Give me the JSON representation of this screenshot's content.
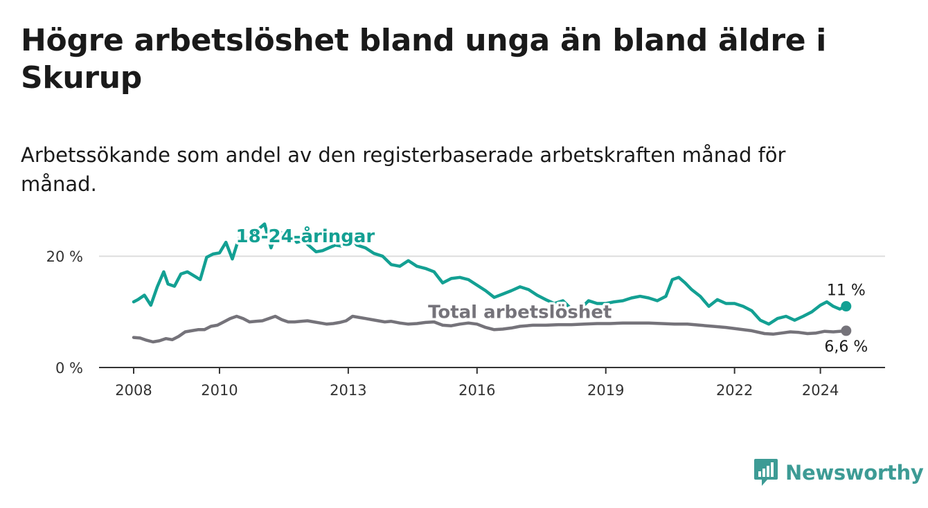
{
  "title": "Högre arbetslöshet bland unga än bland äldre i Skurup",
  "subtitle": "Arbetssökande som andel av den registerbaserade arbetskraften månad för månad.",
  "brand": {
    "name": "Newsworthy"
  },
  "colors": {
    "youth": "#13a093",
    "total": "#75737a",
    "grid": "#dddddd",
    "axis": "#333333"
  },
  "chart_data": {
    "type": "line",
    "x_unit": "year",
    "xlim": [
      2008,
      2024.7
    ],
    "ylim": [
      0,
      25
    ],
    "y_ticks": [
      {
        "value": 0,
        "label": "0 %"
      },
      {
        "value": 20,
        "label": "20 %"
      }
    ],
    "x_ticks": [
      {
        "value": 2008,
        "label": "2008"
      },
      {
        "value": 2010,
        "label": "2010"
      },
      {
        "value": 2013,
        "label": "2013"
      },
      {
        "value": 2016,
        "label": "2016"
      },
      {
        "value": 2019,
        "label": "2019"
      },
      {
        "value": 2022,
        "label": "2022"
      },
      {
        "value": 2024,
        "label": "2024"
      }
    ],
    "series": [
      {
        "name": "18-24-åringar",
        "key": "youth",
        "label_position": {
          "x": 2012.0,
          "y": 22.5
        },
        "end_label": "11 %",
        "x": [
          2008.0,
          2008.1,
          2008.25,
          2008.4,
          2008.55,
          2008.7,
          2008.8,
          2008.95,
          2009.1,
          2009.25,
          2009.4,
          2009.55,
          2009.7,
          2009.85,
          2010.0,
          2010.15,
          2010.3,
          2010.45,
          2010.6,
          2010.75,
          2010.9,
          2011.05,
          2011.2,
          2011.35,
          2011.5,
          2011.65,
          2011.8,
          2011.95,
          2012.1,
          2012.25,
          2012.4,
          2012.55,
          2012.7,
          2012.85,
          2013.0,
          2013.2,
          2013.4,
          2013.6,
          2013.8,
          2014.0,
          2014.2,
          2014.4,
          2014.6,
          2014.8,
          2015.0,
          2015.2,
          2015.4,
          2015.6,
          2015.8,
          2016.0,
          2016.2,
          2016.4,
          2016.6,
          2016.8,
          2017.0,
          2017.2,
          2017.4,
          2017.6,
          2017.8,
          2018.0,
          2018.2,
          2018.4,
          2018.6,
          2018.8,
          2019.0,
          2019.2,
          2019.4,
          2019.6,
          2019.8,
          2020.0,
          2020.2,
          2020.4,
          2020.55,
          2020.7,
          2020.85,
          2021.0,
          2021.2,
          2021.4,
          2021.6,
          2021.8,
          2022.0,
          2022.2,
          2022.4,
          2022.6,
          2022.8,
          2023.0,
          2023.2,
          2023.4,
          2023.6,
          2023.8,
          2024.0,
          2024.15,
          2024.3,
          2024.45,
          2024.6
        ],
        "y": [
          11.8,
          12.2,
          13.0,
          11.2,
          14.5,
          17.2,
          15.0,
          14.6,
          16.8,
          17.2,
          16.5,
          15.8,
          19.8,
          20.4,
          20.6,
          22.5,
          19.5,
          23.2,
          22.5,
          24.2,
          24.8,
          25.8,
          21.5,
          24.8,
          23.8,
          24.2,
          22.5,
          22.8,
          21.8,
          20.8,
          21.0,
          21.5,
          22.0,
          21.8,
          24.0,
          22.0,
          21.5,
          20.5,
          20.0,
          18.5,
          18.2,
          19.2,
          18.2,
          17.8,
          17.2,
          15.2,
          16.0,
          16.2,
          15.8,
          14.8,
          13.8,
          12.6,
          13.2,
          13.8,
          14.5,
          14.0,
          13.0,
          12.2,
          11.5,
          12.0,
          10.5,
          10.5,
          12.0,
          11.5,
          11.5,
          11.8,
          12.0,
          12.5,
          12.8,
          12.5,
          12.0,
          12.8,
          15.8,
          16.2,
          15.2,
          14.0,
          12.8,
          11.0,
          12.2,
          11.5,
          11.5,
          11.0,
          10.2,
          8.5,
          7.8,
          8.8,
          9.2,
          8.5,
          9.2,
          10.0,
          11.2,
          11.8,
          11.0,
          10.5,
          11.0
        ]
      },
      {
        "name": "Total arbetslöshet",
        "key": "total",
        "label_position": {
          "x": 2017.0,
          "y": 8.9
        },
        "end_label": "6,6 %",
        "x": [
          2008.0,
          2008.15,
          2008.3,
          2008.45,
          2008.6,
          2008.75,
          2008.9,
          2009.05,
          2009.2,
          2009.35,
          2009.5,
          2009.65,
          2009.8,
          2009.95,
          2010.1,
          2010.25,
          2010.4,
          2010.55,
          2010.7,
          2010.85,
          2011.0,
          2011.15,
          2011.3,
          2011.45,
          2011.6,
          2011.75,
          2011.9,
          2012.05,
          2012.2,
          2012.35,
          2012.5,
          2012.65,
          2012.8,
          2012.95,
          2013.1,
          2013.25,
          2013.4,
          2013.55,
          2013.7,
          2013.85,
          2014.0,
          2014.2,
          2014.4,
          2014.6,
          2014.8,
          2015.0,
          2015.2,
          2015.4,
          2015.6,
          2015.8,
          2016.0,
          2016.2,
          2016.4,
          2016.6,
          2016.8,
          2017.0,
          2017.3,
          2017.6,
          2017.9,
          2018.2,
          2018.5,
          2018.8,
          2019.1,
          2019.4,
          2019.7,
          2020.0,
          2020.3,
          2020.6,
          2020.9,
          2021.2,
          2021.5,
          2021.8,
          2022.1,
          2022.4,
          2022.7,
          2022.9,
          2023.1,
          2023.3,
          2023.5,
          2023.7,
          2023.9,
          2024.1,
          2024.3,
          2024.45,
          2024.6
        ],
        "y": [
          5.4,
          5.3,
          4.9,
          4.6,
          4.8,
          5.2,
          5.0,
          5.6,
          6.4,
          6.6,
          6.8,
          6.8,
          7.4,
          7.6,
          8.2,
          8.8,
          9.2,
          8.8,
          8.2,
          8.3,
          8.4,
          8.8,
          9.2,
          8.6,
          8.2,
          8.2,
          8.3,
          8.4,
          8.2,
          8.0,
          7.8,
          7.9,
          8.1,
          8.4,
          9.2,
          9.0,
          8.8,
          8.6,
          8.4,
          8.2,
          8.3,
          8.0,
          7.8,
          7.9,
          8.1,
          8.2,
          7.6,
          7.5,
          7.8,
          8.0,
          7.8,
          7.2,
          6.8,
          6.9,
          7.1,
          7.4,
          7.6,
          7.6,
          7.7,
          7.7,
          7.8,
          7.9,
          7.9,
          8.0,
          8.0,
          8.0,
          7.9,
          7.8,
          7.8,
          7.6,
          7.4,
          7.2,
          6.9,
          6.6,
          6.1,
          6.0,
          6.2,
          6.4,
          6.3,
          6.1,
          6.2,
          6.5,
          6.4,
          6.5,
          6.6
        ]
      }
    ]
  }
}
